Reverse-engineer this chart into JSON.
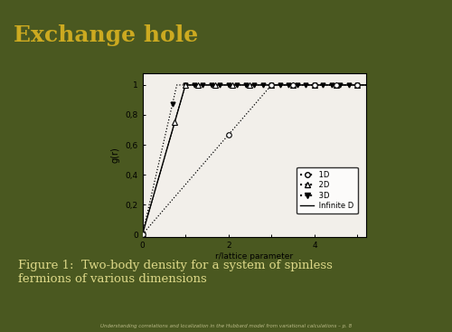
{
  "title": "Exchange hole",
  "figure_caption": "Figure 1:  Two-body density for a system of spinless\nfermions of various dimensions",
  "subtitle_small": "Understanding correlations and localization in the Hubbard model from variational calculations – p. 8",
  "xlabel": "r/lattice parameter",
  "ylabel": "g(r)",
  "xlim": [
    0,
    5.2
  ],
  "ylim": [
    -0.02,
    1.08
  ],
  "ytick_labels": [
    "0",
    "0,2",
    "0,4",
    "0,6",
    "0,8",
    "1"
  ],
  "xtick_labels": [
    "0",
    "",
    "2",
    "",
    "4",
    ""
  ],
  "bg_top_color": "#3d4b10",
  "bg_bottom_color": "#4a5820",
  "separator_color": "#7a6818",
  "title_color": "#ccaa20",
  "caption_color": "#ddd888",
  "plot_bg": "#f2efea",
  "plot_box_bg": "#ffffff"
}
